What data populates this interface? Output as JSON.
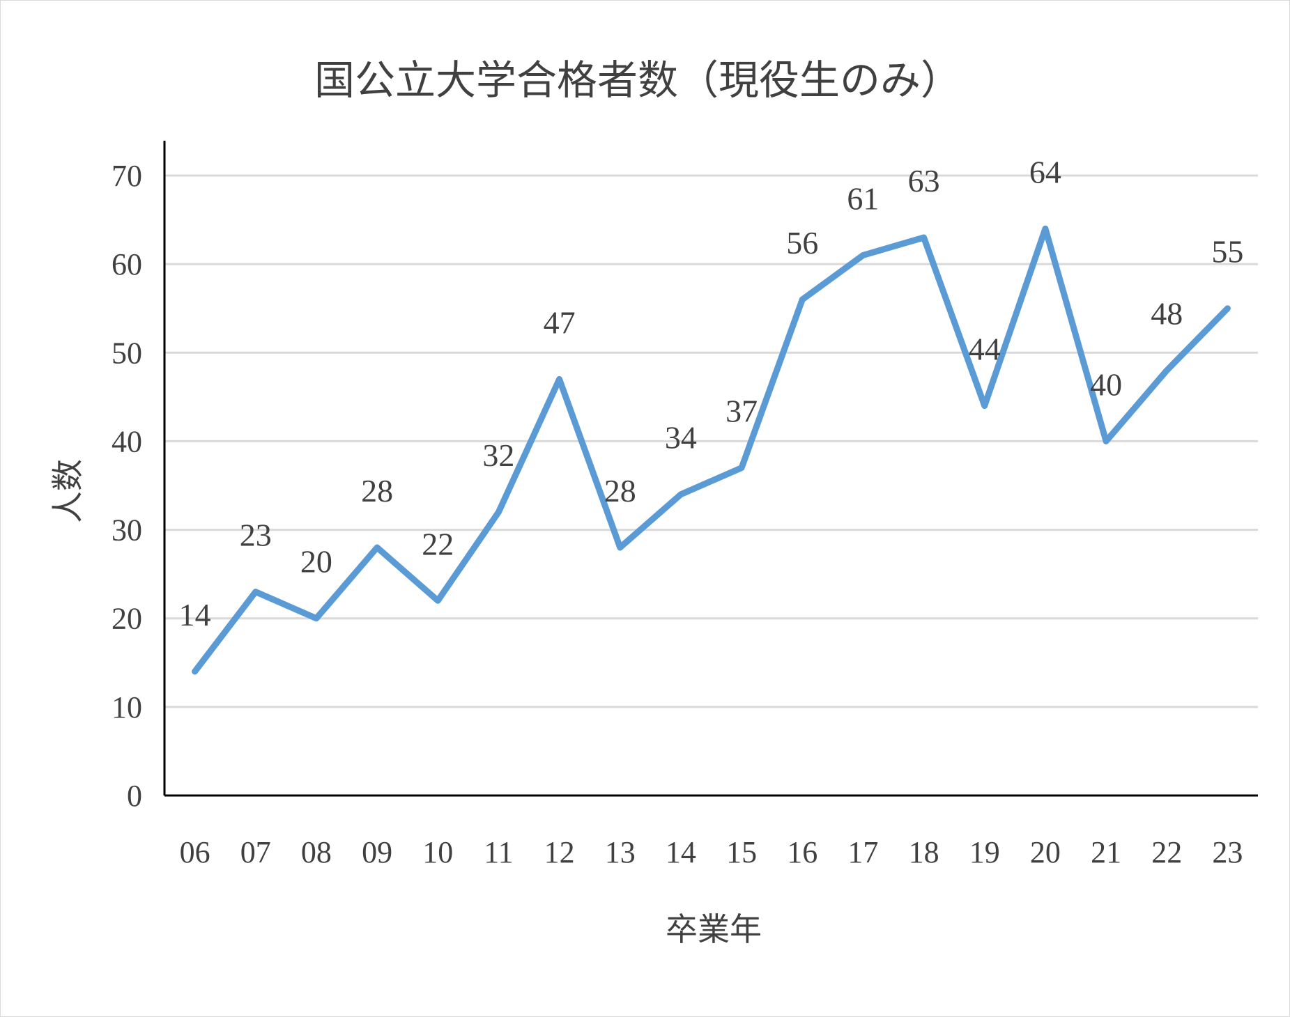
{
  "chart_data": {
    "type": "line",
    "title": "国公立大学合格者数（現役生のみ）",
    "xlabel": "卒業年",
    "ylabel": "人数",
    "categories": [
      "06",
      "07",
      "08",
      "09",
      "10",
      "11",
      "12",
      "13",
      "14",
      "15",
      "16",
      "17",
      "18",
      "19",
      "20",
      "21",
      "22",
      "23"
    ],
    "series": [
      {
        "values": [
          14,
          23,
          20,
          28,
          22,
          32,
          47,
          28,
          34,
          37,
          56,
          61,
          63,
          44,
          64,
          40,
          48,
          55
        ]
      }
    ],
    "ylim": [
      0,
      70
    ],
    "yticks": [
      "0",
      "10",
      "20",
      "30",
      "40",
      "50",
      "60",
      "70"
    ],
    "grid": true,
    "legend": "none",
    "data_labels": true,
    "colors": {
      "series": "#5b9bd5",
      "grid": "#d9d9d9",
      "text": "#404040",
      "axis": "#000000"
    }
  }
}
